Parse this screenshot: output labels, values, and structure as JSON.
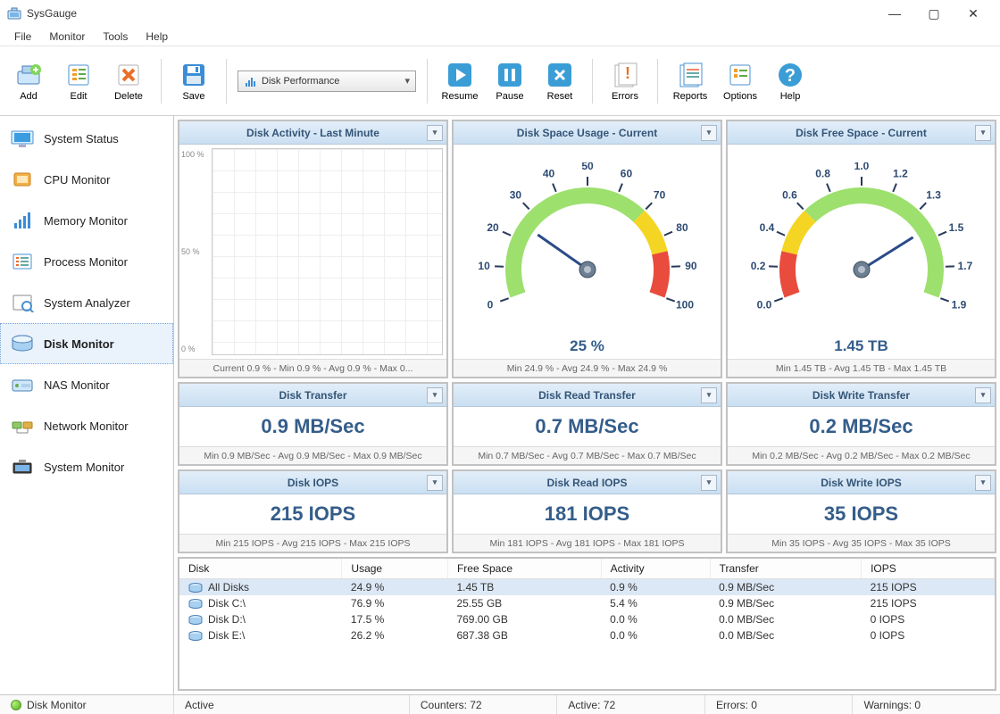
{
  "app": {
    "title": "SysGauge"
  },
  "menu": {
    "items": [
      "File",
      "Monitor",
      "Tools",
      "Help"
    ]
  },
  "toolbar": {
    "buttons": [
      {
        "id": "add",
        "label": "Add"
      },
      {
        "id": "edit",
        "label": "Edit"
      },
      {
        "id": "delete",
        "label": "Delete"
      },
      {
        "id": "save",
        "label": "Save"
      },
      {
        "id": "resume",
        "label": "Resume"
      },
      {
        "id": "pause",
        "label": "Pause"
      },
      {
        "id": "reset",
        "label": "Reset"
      },
      {
        "id": "errors",
        "label": "Errors"
      },
      {
        "id": "reports",
        "label": "Reports"
      },
      {
        "id": "options",
        "label": "Options"
      },
      {
        "id": "help",
        "label": "Help"
      }
    ],
    "combo": "Disk Performance"
  },
  "sidebar": {
    "items": [
      {
        "label": "System Status"
      },
      {
        "label": "CPU Monitor"
      },
      {
        "label": "Memory Monitor"
      },
      {
        "label": "Process Monitor"
      },
      {
        "label": "System Analyzer"
      },
      {
        "label": "Disk Monitor",
        "active": true
      },
      {
        "label": "NAS Monitor"
      },
      {
        "label": "Network Monitor"
      },
      {
        "label": "System Monitor"
      }
    ]
  },
  "panels": {
    "activity": {
      "title": "Disk Activity - Last Minute",
      "foot": "Current 0.9 % - Min 0.9 % - Avg 0.9 % - Max 0...",
      "ylabels": [
        "100 %",
        "50 %",
        "0 %"
      ]
    },
    "gauge_usage": {
      "title": "Disk Space Usage - Current",
      "value_label": "25 %",
      "foot": "Min 24.9 % - Avg 24.9 % - Max 24.9 %",
      "min": 0,
      "max": 100,
      "value": 25,
      "ticks": [
        "0",
        "10",
        "20",
        "30",
        "40",
        "50",
        "60",
        "70",
        "80",
        "90",
        "100"
      ],
      "segments": [
        {
          "from": 0,
          "to": 70,
          "color": "#9de06e"
        },
        {
          "from": 70,
          "to": 85,
          "color": "#f5d523"
        },
        {
          "from": 85,
          "to": 100,
          "color": "#e94b3c"
        }
      ]
    },
    "gauge_free": {
      "title": "Disk Free Space - Current",
      "value_label": "1.45 TB",
      "foot": "Min 1.45 TB - Avg 1.45 TB - Max 1.45 TB",
      "min": 0,
      "max": 1.9,
      "value": 1.45,
      "ticks": [
        "0.0",
        "0.2",
        "0.4",
        "0.6",
        "0.8",
        "1.0",
        "1.2",
        "1.3",
        "1.5",
        "1.7",
        "1.9"
      ],
      "segments": [
        {
          "from": 0,
          "to": 0.285,
          "color": "#e94b3c"
        },
        {
          "from": 0.285,
          "to": 0.57,
          "color": "#f5d523"
        },
        {
          "from": 0.57,
          "to": 1.9,
          "color": "#9de06e"
        }
      ]
    },
    "transfer": {
      "title": "Disk Transfer",
      "value": "0.9 MB/Sec",
      "foot": "Min 0.9 MB/Sec - Avg 0.9 MB/Sec - Max 0.9 MB/Sec"
    },
    "read_transfer": {
      "title": "Disk Read Transfer",
      "value": "0.7 MB/Sec",
      "foot": "Min 0.7 MB/Sec - Avg 0.7 MB/Sec - Max 0.7 MB/Sec"
    },
    "write_transfer": {
      "title": "Disk Write Transfer",
      "value": "0.2 MB/Sec",
      "foot": "Min 0.2 MB/Sec - Avg 0.2 MB/Sec - Max 0.2 MB/Sec"
    },
    "iops": {
      "title": "Disk IOPS",
      "value": "215 IOPS",
      "foot": "Min 215 IOPS - Avg 215 IOPS - Max 215 IOPS"
    },
    "read_iops": {
      "title": "Disk Read IOPS",
      "value": "181 IOPS",
      "foot": "Min 181 IOPS - Avg 181 IOPS - Max 181 IOPS"
    },
    "write_iops": {
      "title": "Disk Write IOPS",
      "value": "35 IOPS",
      "foot": "Min 35 IOPS - Avg 35 IOPS - Max 35 IOPS"
    }
  },
  "table": {
    "columns": [
      "Disk",
      "Usage",
      "Free Space",
      "Activity",
      "Transfer",
      "IOPS"
    ],
    "rows": [
      {
        "cells": [
          "All Disks",
          "24.9 %",
          "1.45 TB",
          "0.9 %",
          "0.9 MB/Sec",
          "215 IOPS"
        ],
        "selected": true
      },
      {
        "cells": [
          "Disk C:\\",
          "76.9 %",
          "25.55 GB",
          "5.4 %",
          "0.9 MB/Sec",
          "215 IOPS"
        ]
      },
      {
        "cells": [
          "Disk D:\\",
          "17.5 %",
          "769.00 GB",
          "0.0 %",
          "0.0 MB/Sec",
          "0 IOPS"
        ]
      },
      {
        "cells": [
          "Disk E:\\",
          "26.2 %",
          "687.38 GB",
          "0.0 %",
          "0.0 MB/Sec",
          "0 IOPS"
        ]
      }
    ]
  },
  "status": {
    "mode": "Disk Monitor",
    "state": "Active",
    "counters": "Counters: 72",
    "active": "Active: 72",
    "errors": "Errors: 0",
    "warnings": "Warnings: 0"
  },
  "colors": {
    "panel_head_top": "#e3eef9",
    "panel_head_bot": "#c9dff2",
    "accent_text": "#345d8a",
    "needle": "#2a4b88",
    "hub": "#6d7f93"
  }
}
